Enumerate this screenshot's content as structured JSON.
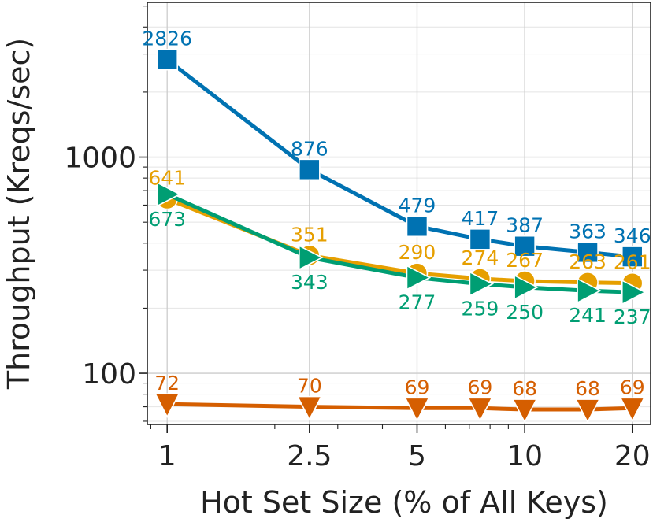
{
  "chart_data": {
    "type": "line",
    "title": "",
    "xlabel": "Hot Set Size (% of All Keys)",
    "ylabel": "Throughput (Kreqs/sec)",
    "x_scale": "log",
    "y_scale": "log",
    "xlim": [
      0.88,
      22.5
    ],
    "ylim": [
      58,
      5200
    ],
    "grid": true,
    "legend": "none",
    "x_ticks": [
      {
        "value": 1,
        "label": "1"
      },
      {
        "value": 2.5,
        "label": "2.5"
      },
      {
        "value": 5,
        "label": "5"
      },
      {
        "value": 10,
        "label": "10"
      },
      {
        "value": 20,
        "label": "20"
      }
    ],
    "y_ticks": [
      {
        "value": 100,
        "label": "100"
      },
      {
        "value": 1000,
        "label": "1000"
      }
    ],
    "x": [
      1,
      2.5,
      5,
      7.5,
      10,
      15,
      20
    ],
    "series": [
      {
        "marker": "square",
        "color": "#0072b2",
        "label_pos": "above",
        "values": [
          2826,
          876,
          479,
          417,
          387,
          363,
          346
        ]
      },
      {
        "marker": "circle",
        "color": "#e69f00",
        "label_pos": "above",
        "values": [
          641,
          351,
          290,
          274,
          267,
          263,
          261
        ]
      },
      {
        "marker": "triangle-right",
        "color": "#009e73",
        "label_pos": "below",
        "values": [
          673,
          343,
          277,
          259,
          250,
          241,
          237
        ]
      },
      {
        "marker": "triangle-down",
        "color": "#d55e00",
        "label_pos": "above",
        "values": [
          72,
          70,
          69,
          69,
          68,
          68,
          69
        ]
      }
    ]
  }
}
